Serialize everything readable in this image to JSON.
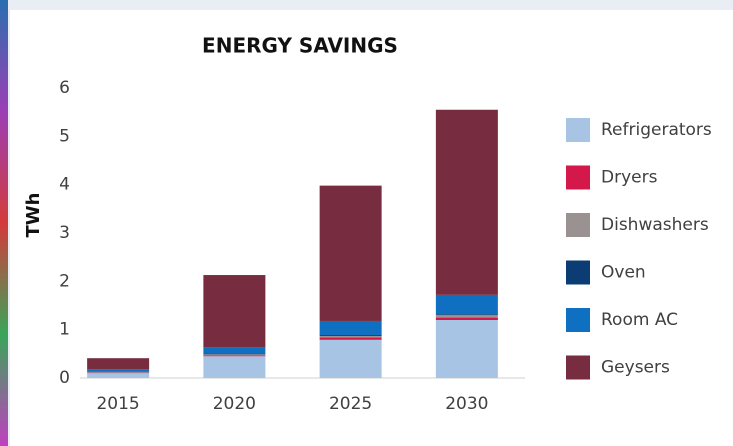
{
  "chart_data": {
    "type": "stacked_bar",
    "title": "ENERGY SAVINGS",
    "y_label": "TWh",
    "categories": [
      "2015",
      "2020",
      "2025",
      "2030"
    ],
    "series": [
      {
        "name": "Refrigerators",
        "color": "#a7c4e5",
        "values": [
          0.1,
          0.45,
          0.79,
          1.2
        ]
      },
      {
        "name": "Dryers",
        "color": "#d4184a",
        "values": [
          0.01,
          0.02,
          0.05,
          0.05
        ]
      },
      {
        "name": "Dishwashers",
        "color": "#9a9290",
        "values": [
          0.01,
          0.02,
          0.03,
          0.05
        ]
      },
      {
        "name": "Oven",
        "color": "#0b3d74",
        "values": [
          0.01,
          0.02,
          0.02,
          0.02
        ]
      },
      {
        "name": "Room AC",
        "color": "#0f6fc0",
        "values": [
          0.05,
          0.13,
          0.29,
          0.4
        ]
      },
      {
        "name": "Geysers",
        "color": "#772d3f",
        "values": [
          0.23,
          1.49,
          2.8,
          3.83
        ]
      }
    ],
    "ylim": [
      0,
      6
    ],
    "yticks": [
      0,
      1,
      2,
      3,
      4,
      5,
      6
    ],
    "legend": "right"
  }
}
